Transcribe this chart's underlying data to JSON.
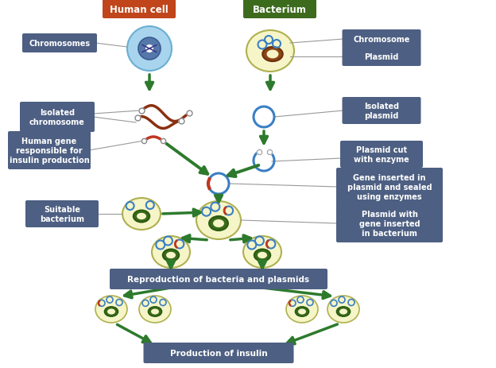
{
  "bg_color": "#ffffff",
  "label_box_color": "#4d5f82",
  "human_cell_header_color": "#c0451a",
  "bacterium_header_color": "#3d6b1e",
  "arrow_color": "#2d7a2d",
  "cell_blue_outer": "#a8d4ed",
  "cell_blue_edge": "#6aafd4",
  "cell_nucleus": "#5577aa",
  "cell_nucleus_edge": "#3a5a90",
  "cell_inner": "#ffffff",
  "bact_cream": "#f5f5c8",
  "bact_edge": "#b0b050",
  "bact_chr_brown": "#8B4513",
  "bact_chr_edge": "#6B3010",
  "plasmid_blue": "#3a7fc4",
  "plasmid_green": "#3a6a1a",
  "human_gene_red": "#c03520",
  "chr_brown": "#8B3010",
  "labels": {
    "human_cell": "Human cell",
    "bacterium": "Bacterium",
    "chromosomes": "Chromosomes",
    "chromosome": "Chromosome",
    "plasmid": "Plasmid",
    "isolated_chromosome": "Isolated\nchromosome",
    "isolated_plasmid": "Isolated\nplasmid",
    "plasmid_cut": "Plasmid cut\nwith enzyme",
    "human_gene": "Human gene\nresponsible for\ninsulin production",
    "gene_inserted": "Gene inserted in\nplasmid and sealed\nusing enzymes",
    "suitable_bacterium": "Suitable\nbacterium",
    "plasmid_with_gene": "Plasmid with\ngene inserted\nin bacterium",
    "reproduction": "Reproduction of bacteria and plasmids",
    "insulin": "Production of insulin"
  }
}
